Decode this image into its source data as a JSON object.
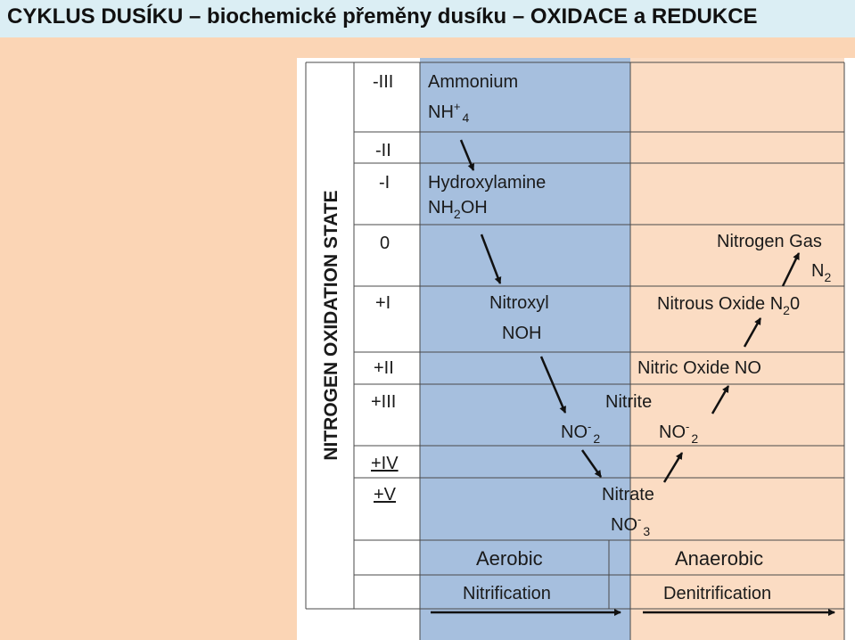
{
  "slide": {
    "title": "CYKLUS DUSÍKU – biochemické přeměny dusíku – OXIDACE a REDUKCE"
  },
  "diagram": {
    "axis_label": "NITROGEN OXIDATION STATE",
    "oxidation_states": [
      "-III",
      "-II",
      "-I",
      "0",
      "+I",
      "+II",
      "+III",
      "+IV",
      "+V"
    ],
    "compounds": {
      "ammonium_name": "Ammonium",
      "ammonium_formula": "NH",
      "ammonium_sup": "+",
      "ammonium_sub": "4",
      "hydroxylamine_name": "Hydroxylamine",
      "hydroxylamine_formula_a": "NH",
      "hydroxylamine_formula_sub": "2",
      "hydroxylamine_formula_b": "OH",
      "nitroxyl_name": "Nitroxyl",
      "nitroxyl_formula": "NOH",
      "nitrogen_gas_name": "Nitrogen Gas",
      "nitrogen_gas_formula": "N",
      "nitrogen_gas_sub": "2",
      "nitrous_oxide_name": "Nitrous Oxide N",
      "nitrous_oxide_sub": "2",
      "nitrous_oxide_tail": "0",
      "nitric_oxide_name": "Nitric Oxide NO",
      "nitrite_name": "Nitrite",
      "nitrite_formula": "NO",
      "nitrite_sup": "-",
      "nitrite_sub": "2",
      "nitrate_name": "Nitrate",
      "nitrate_formula": "NO",
      "nitrate_sup": "-",
      "nitrate_sub": "3"
    },
    "zones": {
      "aerobic": "Aerobic",
      "nitrification": "Nitrification",
      "anaerobic": "Anaerobic",
      "denitrification": "Denitrification"
    },
    "colors": {
      "aerobic_zone": "#a6bfde",
      "anaerobic_zone": "#fbdcc3",
      "slide_background": "#fbd5b5",
      "title_bar": "#dbeef4",
      "grid_line": "#4a4a4a"
    }
  }
}
